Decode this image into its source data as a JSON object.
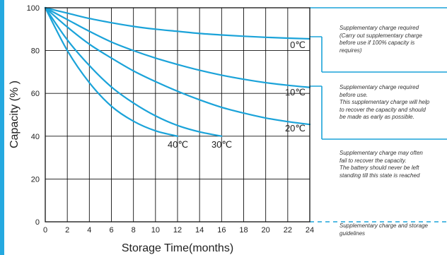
{
  "colors": {
    "curve": "#1ba3d9",
    "frame": "#111111",
    "accent_bar": "#25a9e0"
  },
  "chart_data": {
    "type": "line",
    "xlabel": "Storage  Time(months)",
    "ylabel": "Capacity  (% )",
    "xlim": [
      0,
      24
    ],
    "ylim": [
      0,
      100
    ],
    "x_ticks": [
      "0",
      "2",
      "4",
      "6",
      "8",
      "10",
      "12",
      "14",
      "16",
      "18",
      "20",
      "22",
      "24"
    ],
    "y_ticks": [
      "0",
      "20",
      "40",
      "60",
      "80",
      "100"
    ],
    "grid": true,
    "series": [
      {
        "name": "0℃",
        "label": "0℃",
        "x": [
          0,
          2,
          4,
          6,
          8,
          10,
          12,
          14,
          16,
          18,
          20,
          22,
          24
        ],
        "y": [
          100,
          97.5,
          95,
          93,
          91.3,
          90,
          89,
          88,
          87.3,
          86.7,
          86.2,
          85.8,
          85.5
        ]
      },
      {
        "name": "10℃",
        "label": "10℃",
        "x": [
          0,
          2,
          4,
          6,
          8,
          10,
          12,
          14,
          16,
          18,
          20,
          22,
          24
        ],
        "y": [
          100,
          94.5,
          89,
          84,
          80,
          76.5,
          73.5,
          70.8,
          68.5,
          66.6,
          65,
          63.8,
          62.8
        ]
      },
      {
        "name": "20℃",
        "label": "20℃",
        "x": [
          0,
          2,
          4,
          6,
          8,
          10,
          12,
          14,
          16,
          18,
          20,
          22,
          24
        ],
        "y": [
          100,
          91,
          83,
          76.5,
          70.5,
          65.5,
          61,
          57,
          53.5,
          50.8,
          48.5,
          46.8,
          45.5
        ]
      },
      {
        "name": "30℃",
        "label": "30℃",
        "x": [
          0,
          2,
          4,
          6,
          8,
          10,
          12,
          14,
          16
        ],
        "y": [
          100,
          85,
          73,
          63,
          55.5,
          49.5,
          45,
          42,
          40
        ]
      },
      {
        "name": "40℃",
        "label": "40℃",
        "x": [
          0,
          2,
          4,
          6,
          8,
          10,
          12
        ],
        "y": [
          100,
          80,
          65,
          54,
          47,
          42.5,
          40
        ]
      }
    ]
  },
  "notes": [
    "Supplementary charge required\n(Carry out supplementary charge\nbefore use if 100% capacity is\nrequires)",
    "Supplementary charge required\nbefore use.\nThis supplementary charge will help\nto recover the capacity and should\nbe made  as early as possible.",
    "Supplementary charge may often\nfail to recover the capacity.\nThe battery should never be left\nstanding till this state is reached",
    "Supplementary charge and storage\nguidelines"
  ]
}
